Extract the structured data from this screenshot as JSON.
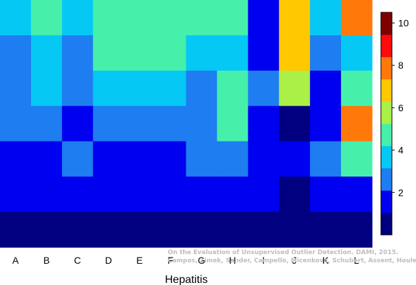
{
  "chart_data": {
    "type": "heatmap",
    "title": "",
    "xlabel": "Hepatitis",
    "ylabel": "",
    "categories": [
      "A",
      "B",
      "C",
      "D",
      "E",
      "F",
      "G",
      "H",
      "I",
      "J",
      "K",
      "L"
    ],
    "rows": 7,
    "value_range": [
      0,
      10.5
    ],
    "colorbar_ticks": [
      2,
      4,
      6,
      8,
      10
    ],
    "values": [
      [
        4,
        5,
        4,
        5,
        5,
        5,
        5,
        5,
        2,
        7,
        4,
        8
      ],
      [
        3,
        4,
        3,
        5,
        5,
        5,
        4,
        4,
        2,
        7,
        3,
        4
      ],
      [
        3,
        4,
        3,
        4,
        4,
        4,
        3,
        5,
        3,
        6,
        2,
        5
      ],
      [
        3,
        3,
        2,
        3,
        3,
        3,
        3,
        5,
        2,
        1,
        2,
        8
      ],
      [
        2,
        2,
        3,
        2,
        2,
        2,
        3,
        3,
        2,
        2,
        3,
        5
      ],
      [
        2,
        2,
        2,
        2,
        2,
        2,
        2,
        2,
        2,
        1,
        2,
        2
      ],
      [
        1,
        1,
        1,
        1,
        1,
        1,
        1,
        1,
        1,
        1,
        1,
        1
      ]
    ],
    "colorscale": [
      "#000080",
      "#0000f0",
      "#1e7df0",
      "#05c8f5",
      "#46f0aa",
      "#aaf046",
      "#ffc800",
      "#ff780a",
      "#ff0a0a",
      "#800000"
    ]
  },
  "credit": {
    "line1": "On the Evaluation of Unsupervised Outlier Detection. DAMI, 2015.",
    "line2": "Campos, Zimek, Sander, Campello, Micenková, Schubert, Assent, Houle"
  }
}
